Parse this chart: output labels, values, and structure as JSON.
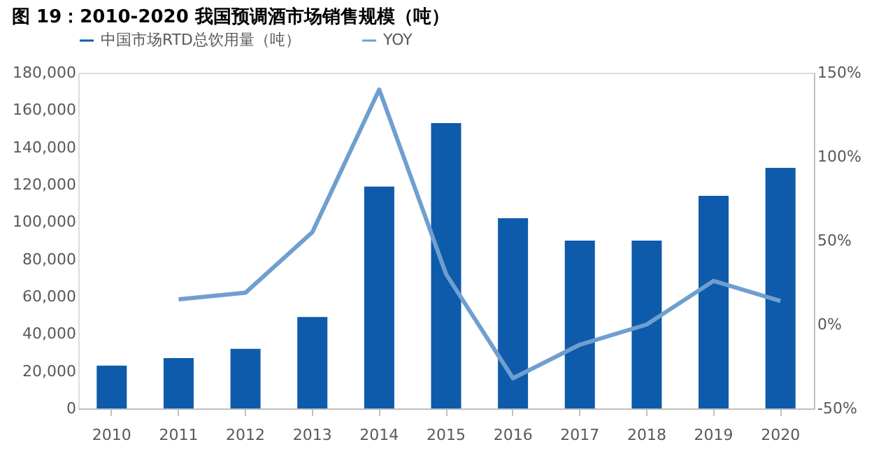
{
  "chart_data": {
    "type": "bar",
    "title": "图 19：2010-2020 我国预调酒市场销售规模（吨）",
    "categories": [
      "2010",
      "2011",
      "2012",
      "2013",
      "2014",
      "2015",
      "2016",
      "2017",
      "2018",
      "2019",
      "2020"
    ],
    "series": [
      {
        "name": "中国市场RTD总饮用量（吨）",
        "color": "#0e5bab",
        "values": [
          23000,
          27000,
          32000,
          49000,
          119000,
          153000,
          102000,
          90000,
          90000,
          114000,
          129000
        ]
      },
      {
        "name": "YOY",
        "type": "line",
        "axis": "y2",
        "color": "#6f9fcf",
        "values": [
          null,
          15,
          19,
          55,
          140,
          30,
          -32,
          -12,
          0,
          26,
          14
        ]
      }
    ],
    "ylim": [
      0,
      180000
    ],
    "yticks": [
      0,
      {
        "value": 20000,
        "label": "20,000"
      },
      {
        "value": 40000,
        "label": "40,000"
      },
      {
        "value": 60000,
        "label": "60,000"
      },
      {
        "value": 80000,
        "label": "80,000"
      },
      {
        "value": 100000,
        "label": "100,000"
      },
      {
        "value": 120000,
        "label": "120,000"
      },
      {
        "value": 140000,
        "label": "140,000"
      },
      {
        "value": 160000,
        "label": "160,000"
      },
      {
        "value": 180000,
        "label": "180,000"
      }
    ],
    "y2lim": [
      -50,
      150
    ],
    "y2ticks": [
      {
        "value": -50,
        "label": "-50%"
      },
      {
        "value": 0,
        "label": "0%"
      },
      {
        "value": 50,
        "label": "50%"
      },
      {
        "value": 100,
        "label": "100%"
      },
      {
        "value": 150,
        "label": "150%"
      }
    ],
    "grid": false,
    "legend": "top",
    "marker": "none",
    "line_style": "solid"
  }
}
